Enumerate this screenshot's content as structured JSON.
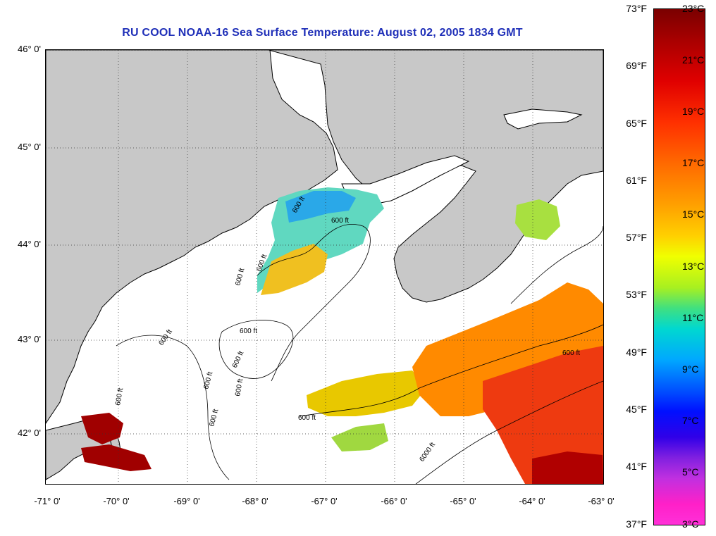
{
  "title": "RU COOL  NOAA-16  Sea Surface Temperature:  August 02, 2005 1834 GMT",
  "lat_labels": [
    "46° 0'",
    "45° 0'",
    "44° 0'",
    "43° 0'",
    "42° 0'"
  ],
  "lon_labels": [
    "-71° 0'",
    "-70° 0'",
    "-69° 0'",
    "-68° 0'",
    "-67° 0'",
    "-66° 0'",
    "-65° 0'",
    "-64° 0'",
    "-63° 0'"
  ],
  "contour_labels": [
    "600 ft",
    "600 ft",
    "600 ft",
    "600 ft",
    "600 ft",
    "600 ft",
    "600 ft",
    "600 ft",
    "600 ft",
    "600 ft",
    "600 ft",
    "600 ft",
    "600 ft",
    "6000 ft"
  ],
  "colorbar": {
    "fahrenheit": [
      "73°F",
      "69°F",
      "65°F",
      "61°F",
      "57°F",
      "53°F",
      "49°F",
      "45°F",
      "41°F",
      "37°F"
    ],
    "celsius": [
      "23°C",
      "21°C",
      "19°C",
      "17°C",
      "15°C",
      "13°C",
      "11°C",
      "9°C",
      "7°C",
      "5°C",
      "3°C"
    ]
  },
  "colors": {
    "land": "#c8c8c8",
    "title": "#1f2fb8",
    "cool_water": "#40c0e0",
    "warm_water": "#ff7a00",
    "hot_water": "#a00000"
  }
}
